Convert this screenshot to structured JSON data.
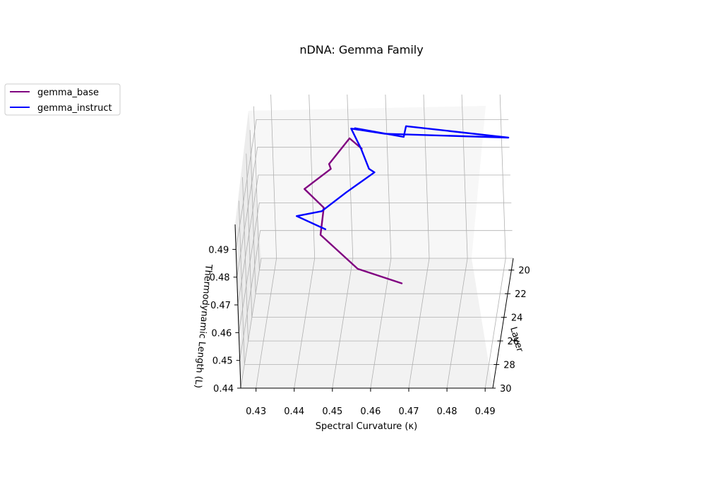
{
  "chart_data": {
    "type": "line",
    "projection": "3d",
    "title": "nDNA: Gemma Family",
    "xlabel": "Spectral Curvature (κ)",
    "ylabel": "Layer",
    "zlabel": "Thermodynamic Length (L)",
    "x_ticks": [
      "0.43",
      "0.44",
      "0.45",
      "0.46",
      "0.47",
      "0.48",
      "0.49"
    ],
    "y_ticks": [
      "20",
      "22",
      "24",
      "26",
      "28",
      "30"
    ],
    "z_ticks": [
      "0.44",
      "0.45",
      "0.46",
      "0.47",
      "0.48",
      "0.49"
    ],
    "xlim": [
      0.426,
      0.492
    ],
    "ylim": [
      19,
      30
    ],
    "zlim": [
      0.44,
      0.499
    ],
    "grid": true,
    "legend_position": "top-left",
    "series": [
      {
        "name": "gemma_base",
        "color": "#800080",
        "points": [
          {
            "x": 0.4685,
            "y": 29.0,
            "z": 0.4735
          },
          {
            "x": 0.4565,
            "y": 28.0,
            "z": 0.4745
          },
          {
            "x": 0.4465,
            "y": 27.0,
            "z": 0.4825
          },
          {
            "x": 0.447,
            "y": 26.0,
            "z": 0.488
          },
          {
            "x": 0.4415,
            "y": 25.0,
            "z": 0.4905
          },
          {
            "x": 0.448,
            "y": 24.0,
            "z": 0.4935
          },
          {
            "x": 0.447,
            "y": 23.0,
            "z": 0.491
          },
          {
            "x": 0.452,
            "y": 22.0,
            "z": 0.496
          },
          {
            "x": 0.4545,
            "y": 21.0,
            "z": 0.488
          }
        ]
      },
      {
        "name": "gemma_instruct",
        "color": "#0000ff",
        "points": [
          {
            "x": 0.449,
            "y": 29.0,
            "z": 0.493
          },
          {
            "x": 0.441,
            "y": 28.0,
            "z": 0.4935
          },
          {
            "x": 0.447,
            "y": 27.0,
            "z": 0.491
          },
          {
            "x": 0.453,
            "y": 26.0,
            "z": 0.4935
          },
          {
            "x": 0.46,
            "y": 25.0,
            "z": 0.4965
          },
          {
            "x": 0.458,
            "y": 24.0,
            "z": 0.4935
          },
          {
            "x": 0.4555,
            "y": 23.0,
            "z": 0.4965
          },
          {
            "x": 0.4525,
            "y": 22.0,
            "z": 0.4995
          },
          {
            "x": 0.461,
            "y": 21.5,
            "z": 0.4955
          },
          {
            "x": 0.493,
            "y": 21.0,
            "z": 0.492
          },
          {
            "x": 0.466,
            "y": 20.5,
            "z": 0.494
          },
          {
            "x": 0.465,
            "y": 20.0,
            "z": 0.488
          },
          {
            "x": 0.452,
            "y": 19.5,
            "z": 0.489
          }
        ]
      }
    ]
  }
}
